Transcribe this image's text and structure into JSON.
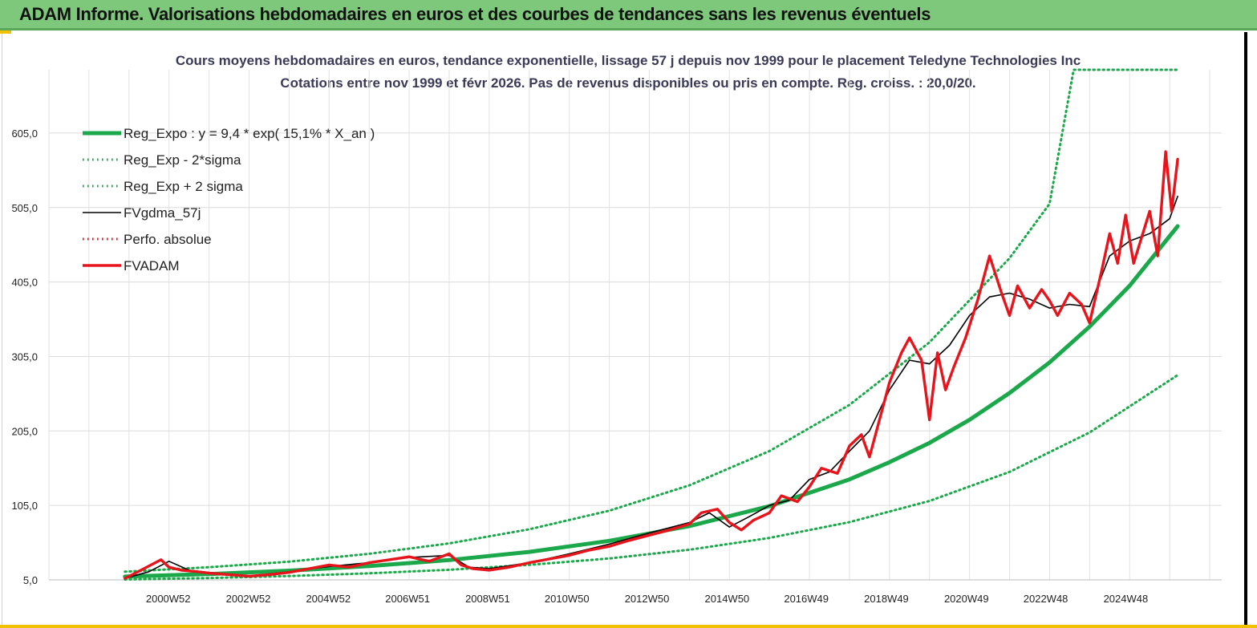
{
  "header": {
    "title": "ADAM Informe. Valorisations hebdomadaires en euros et des courbes de tendances sans les revenus éventuels"
  },
  "chart_data": {
    "type": "line",
    "title": "Cours moyens hebdomadaires en euros, tendance exponentielle, lissage 57 j depuis nov 1999 pour le placement Teledyne Technologies Inc",
    "subtitle": "Cotations entre nov 1999 et févr 2026. Pas de revenus disponibles ou pris en compte. Reg. croiss. : 20,0/20.",
    "xlabel": "",
    "ylabel": "",
    "x_ticks": [
      "2000W52",
      "2002W52",
      "2004W52",
      "2006W51",
      "2008W51",
      "2010W50",
      "2012W50",
      "2014W50",
      "2016W49",
      "2018W49",
      "2020W49",
      "2022W48",
      "2024W48"
    ],
    "y_ticks": [
      "5,0",
      "105,0",
      "205,0",
      "305,0",
      "405,0",
      "505,0",
      "605,0"
    ],
    "ylim": [
      5,
      690
    ],
    "xlim": [
      1998.0,
      2027.3
    ],
    "grid": true,
    "legend_position": "top-left",
    "series": [
      {
        "name": "Reg_Expo : y = 9,4 * exp( 15,1% *  X_an )",
        "style": "solid-thick",
        "color": "#1aa84a",
        "x": [
          1999.9,
          2002,
          2004,
          2006,
          2008,
          2010,
          2012,
          2014,
          2016,
          2018,
          2019,
          2020,
          2021,
          2022,
          2023,
          2024,
          2025,
          2026.2
        ],
        "values": [
          9.4,
          12.9,
          17.4,
          23.5,
          31.6,
          42.6,
          57.4,
          77.3,
          104,
          140,
          163,
          189,
          220,
          256,
          297,
          345,
          400,
          480
        ]
      },
      {
        "name": "Reg_Exp - 2*sigma",
        "style": "dotted",
        "color": "#1aa84a",
        "x": [
          1999.9,
          2002,
          2004,
          2006,
          2008,
          2010,
          2012,
          2014,
          2016,
          2018,
          2020,
          2022,
          2024,
          2026.2
        ],
        "values": [
          5.5,
          7.5,
          10.2,
          13.8,
          18.6,
          25.1,
          33.8,
          45.5,
          61.3,
          82.6,
          111,
          150,
          203,
          280
        ]
      },
      {
        "name": "Reg_Exp + 2 sigma",
        "style": "dotted",
        "color": "#1aa84a",
        "x": [
          1999.9,
          2002,
          2004,
          2006,
          2008,
          2010,
          2012,
          2014,
          2016,
          2018,
          2020,
          2022,
          2023,
          2023.6,
          2026.2
        ],
        "values": [
          16,
          22,
          29.5,
          40,
          54,
          73,
          98,
          132,
          178,
          240,
          324,
          437,
          510,
          690,
          690
        ]
      },
      {
        "name": "FVgdma_57j",
        "style": "solid-thin",
        "color": "#000000",
        "x": [
          1999.9,
          2000.5,
          2001,
          2001.5,
          2002,
          2003,
          2004,
          2005,
          2006,
          2007,
          2008,
          2008.5,
          2009,
          2010,
          2011,
          2012,
          2013,
          2014,
          2014.5,
          2015,
          2015.5,
          2016,
          2016.5,
          2017,
          2017.5,
          2018,
          2018.5,
          2019,
          2019.5,
          2020,
          2020.5,
          2021,
          2021.5,
          2022,
          2022.5,
          2023,
          2023.5,
          2024,
          2024.5,
          2025,
          2025.5,
          2026,
          2026.2
        ],
        "values": [
          7,
          16,
          30,
          18,
          15,
          10,
          16,
          23,
          28,
          35,
          38,
          22,
          20,
          28,
          40,
          53,
          68,
          82,
          95,
          76,
          90,
          105,
          112,
          140,
          150,
          178,
          205,
          260,
          300,
          295,
          320,
          360,
          385,
          390,
          382,
          370,
          375,
          372,
          440,
          460,
          470,
          490,
          520
        ]
      },
      {
        "name": "Perfo. absolue",
        "style": "dotted",
        "color": "#e8141c",
        "x": [],
        "values": []
      },
      {
        "name": "FVADAM",
        "style": "solid-thick",
        "color": "#e8141c",
        "x": [
          1999.9,
          2000.3,
          2000.8,
          2001,
          2001.3,
          2001.7,
          2002,
          2002.5,
          2003,
          2003.5,
          2004,
          2004.5,
          2005,
          2005.5,
          2006,
          2006.5,
          2007,
          2007.5,
          2008,
          2008.3,
          2008.6,
          2009,
          2009.5,
          2010,
          2010.5,
          2011,
          2011.5,
          2012,
          2012.5,
          2013,
          2013.5,
          2014,
          2014.3,
          2014.7,
          2015,
          2015.3,
          2015.6,
          2016,
          2016.3,
          2016.7,
          2017,
          2017.3,
          2017.7,
          2018,
          2018.3,
          2018.5,
          2018.8,
          2019,
          2019.3,
          2019.5,
          2019.8,
          2020,
          2020.2,
          2020.4,
          2020.6,
          2020.9,
          2021.2,
          2021.5,
          2021.8,
          2022,
          2022.2,
          2022.5,
          2022.8,
          2023,
          2023.2,
          2023.5,
          2023.8,
          2024,
          2024.3,
          2024.5,
          2024.7,
          2024.9,
          2025.1,
          2025.3,
          2025.5,
          2025.7,
          2025.9,
          2026.05,
          2026.2
        ],
        "values": [
          7,
          18,
          32,
          22,
          18,
          16,
          14,
          12,
          10,
          12,
          15,
          20,
          25,
          22,
          28,
          32,
          36,
          30,
          40,
          25,
          20,
          18,
          22,
          28,
          33,
          38,
          45,
          50,
          58,
          65,
          72,
          80,
          95,
          100,
          82,
          72,
          85,
          95,
          118,
          110,
          130,
          155,
          148,
          185,
          200,
          170,
          230,
          270,
          310,
          330,
          300,
          220,
          310,
          260,
          290,
          330,
          380,
          440,
          390,
          360,
          400,
          370,
          395,
          380,
          360,
          390,
          375,
          350,
          420,
          470,
          430,
          495,
          430,
          465,
          500,
          440,
          580,
          500,
          570
        ]
      }
    ]
  }
}
